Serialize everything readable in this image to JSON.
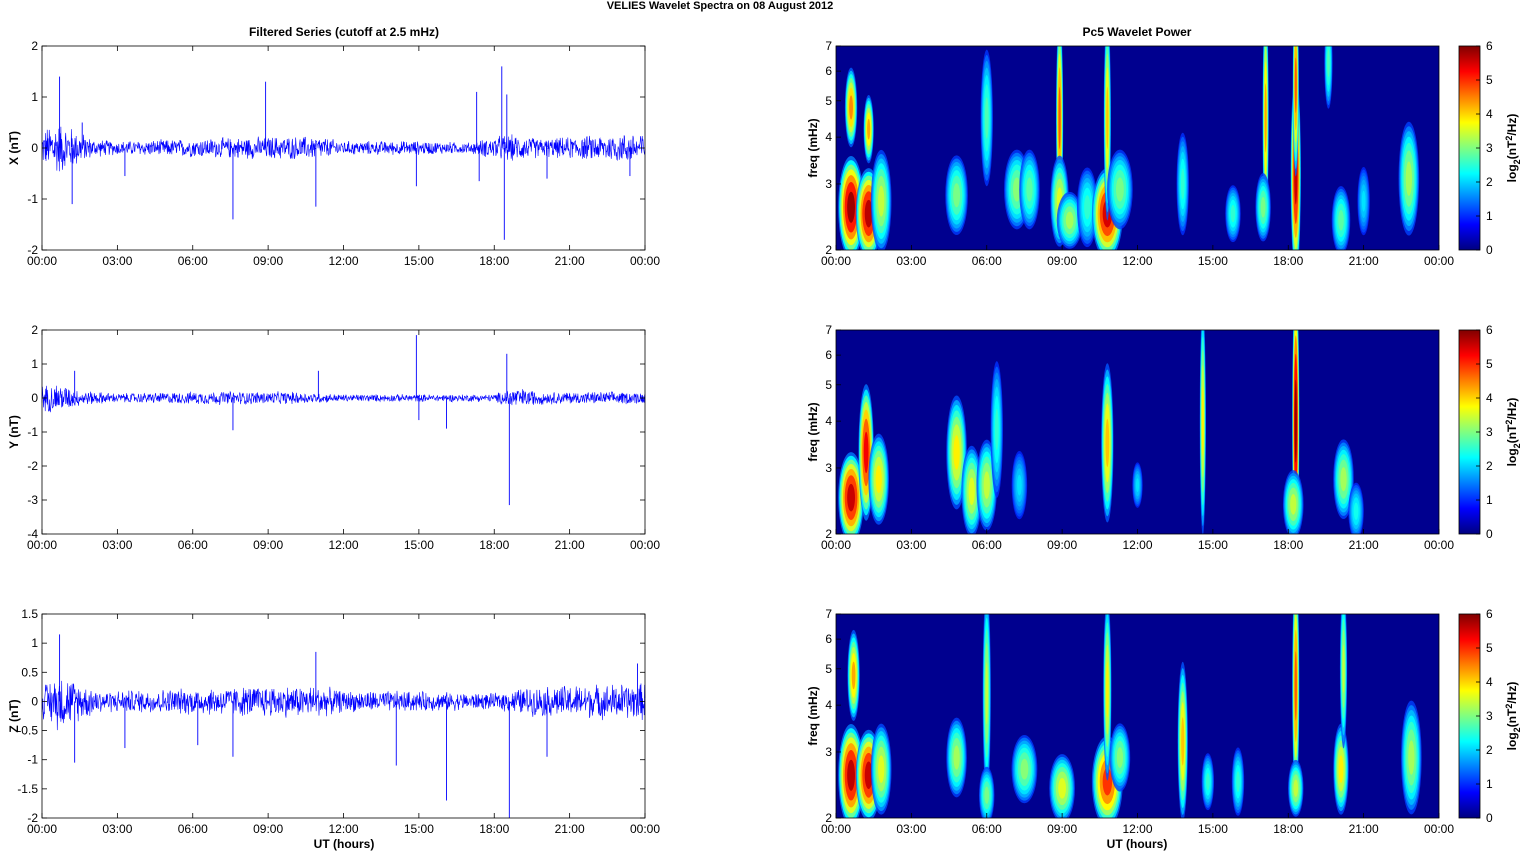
{
  "figure": {
    "title": "VELIES Wavelet Spectra on 08 August    2012",
    "left_title": "Filtered Series (cutoff at 2.5 mHz)",
    "right_title": "Pc5 Wavelet Power",
    "xlabel": "UT (hours)"
  },
  "colors": {
    "trace": "#0000ff",
    "spectrum_background": "#00008f"
  },
  "chart_data": [
    {
      "type": "line",
      "title": "Filtered Series (cutoff at 2.5 mHz)",
      "ylabel": "X (nT)",
      "xlim": [
        0,
        24
      ],
      "ylim": [
        -2,
        2
      ],
      "xticks": [
        "00:00",
        "03:00",
        "06:00",
        "09:00",
        "12:00",
        "15:00",
        "18:00",
        "21:00",
        "00:00"
      ],
      "yticks": [
        2,
        1,
        0,
        -1,
        -2
      ],
      "ytick_labels": [
        "2",
        "1",
        "0",
        "-1",
        "-2"
      ],
      "envelope": [
        [
          0,
          0.35
        ],
        [
          0.5,
          0.6
        ],
        [
          1.2,
          0.45
        ],
        [
          2,
          0.2
        ],
        [
          3,
          0.15
        ],
        [
          6,
          0.2
        ],
        [
          9,
          0.25
        ],
        [
          11,
          0.25
        ],
        [
          12,
          0.15
        ],
        [
          15,
          0.15
        ],
        [
          17,
          0.12
        ],
        [
          18.5,
          0.3
        ],
        [
          20,
          0.2
        ],
        [
          24,
          0.35
        ]
      ],
      "spikes": [
        [
          0.7,
          1.4
        ],
        [
          1.2,
          -1.1
        ],
        [
          1.6,
          0.5
        ],
        [
          3.3,
          -0.55
        ],
        [
          7.6,
          -1.4
        ],
        [
          8.9,
          1.3
        ],
        [
          10.9,
          -1.15
        ],
        [
          14.9,
          -0.75
        ],
        [
          17.3,
          1.1
        ],
        [
          17.4,
          -0.65
        ],
        [
          18.3,
          1.6
        ],
        [
          18.4,
          -1.8
        ],
        [
          18.5,
          1.05
        ],
        [
          20.1,
          -0.6
        ],
        [
          23.4,
          -0.55
        ]
      ],
      "series": [
        {
          "name": "X",
          "values": []
        }
      ]
    },
    {
      "type": "line",
      "ylabel": "Y (nT)",
      "xlim": [
        0,
        24
      ],
      "ylim": [
        -4,
        2
      ],
      "xticks": [
        "00:00",
        "03:00",
        "06:00",
        "09:00",
        "12:00",
        "15:00",
        "18:00",
        "21:00",
        "00:00"
      ],
      "yticks": [
        2,
        1,
        0,
        -1,
        -2,
        -3,
        -4
      ],
      "ytick_labels": [
        "2",
        "1",
        "0",
        "-1",
        "-2",
        "-3",
        "-4"
      ],
      "envelope": [
        [
          0,
          0.4
        ],
        [
          0.6,
          0.5
        ],
        [
          1.5,
          0.25
        ],
        [
          3,
          0.15
        ],
        [
          7,
          0.22
        ],
        [
          10,
          0.2
        ],
        [
          12,
          0.12
        ],
        [
          18,
          0.12
        ],
        [
          18.7,
          0.35
        ],
        [
          20,
          0.2
        ],
        [
          24,
          0.2
        ]
      ],
      "spikes": [
        [
          1.3,
          0.8
        ],
        [
          7.6,
          -0.95
        ],
        [
          11,
          0.8
        ],
        [
          14.9,
          1.85
        ],
        [
          15,
          -0.65
        ],
        [
          16.1,
          -0.9
        ],
        [
          18.5,
          1.3
        ],
        [
          18.6,
          -3.15
        ]
      ],
      "series": [
        {
          "name": "Y",
          "values": []
        }
      ]
    },
    {
      "type": "line",
      "ylabel": "Z (nT)",
      "xlabel": "UT (hours)",
      "xlim": [
        0,
        24
      ],
      "ylim": [
        -2,
        1.5
      ],
      "xticks": [
        "00:00",
        "03:00",
        "06:00",
        "09:00",
        "12:00",
        "15:00",
        "18:00",
        "21:00",
        "00:00"
      ],
      "yticks": [
        1.5,
        1,
        0.5,
        0,
        -0.5,
        -1,
        -1.5,
        -2
      ],
      "ytick_labels": [
        "1.5",
        "1",
        "0.5",
        "0",
        "-0.5",
        "-1",
        "-1.5",
        "-2"
      ],
      "envelope": [
        [
          0,
          0.3
        ],
        [
          0.7,
          0.55
        ],
        [
          1.5,
          0.35
        ],
        [
          2.5,
          0.2
        ],
        [
          6,
          0.25
        ],
        [
          9,
          0.3
        ],
        [
          11,
          0.3
        ],
        [
          12,
          0.2
        ],
        [
          14,
          0.2
        ],
        [
          18,
          0.15
        ],
        [
          19,
          0.25
        ],
        [
          20.5,
          0.3
        ],
        [
          24,
          0.35
        ]
      ],
      "spikes": [
        [
          0.7,
          1.15
        ],
        [
          1.3,
          -1.05
        ],
        [
          3.3,
          -0.8
        ],
        [
          6.2,
          -0.75
        ],
        [
          7.6,
          -0.95
        ],
        [
          10.9,
          0.85
        ],
        [
          14.1,
          -1.1
        ],
        [
          16.1,
          -1.7
        ],
        [
          18.6,
          -2.0
        ],
        [
          20.1,
          -0.95
        ],
        [
          23.7,
          0.65
        ]
      ],
      "series": [
        {
          "name": "Z",
          "values": []
        }
      ]
    },
    {
      "type": "heatmap",
      "title": "Pc5 Wavelet Power",
      "ylabel": "freq (mHz)",
      "colorbar_label": "log2(nT2/Hz)",
      "xlim": [
        0,
        24
      ],
      "ylim": [
        2,
        7
      ],
      "yscale": "log",
      "clim": [
        0,
        6
      ],
      "xticks": [
        "00:00",
        "03:00",
        "06:00",
        "09:00",
        "12:00",
        "15:00",
        "18:00",
        "21:00",
        "00:00"
      ],
      "yticks": [
        2,
        3,
        4,
        5,
        6,
        7
      ],
      "ytick_labels": [
        "2",
        "3",
        "4",
        "5",
        "6",
        "7"
      ],
      "cticks": [
        "0",
        "1",
        "2",
        "3",
        "4",
        "5",
        "6"
      ],
      "blobs": [
        [
          0.6,
          2.6,
          0.25,
          0.45,
          5.8
        ],
        [
          0.6,
          4.8,
          0.12,
          0.35,
          4.2
        ],
        [
          1.3,
          2.5,
          0.25,
          0.4,
          5.6
        ],
        [
          1.3,
          4.2,
          0.1,
          0.3,
          4.0
        ],
        [
          1.8,
          2.7,
          0.2,
          0.45,
          3.0
        ],
        [
          4.8,
          2.8,
          0.22,
          0.35,
          2.5
        ],
        [
          6.0,
          4.5,
          0.12,
          0.6,
          2.2
        ],
        [
          7.2,
          2.9,
          0.25,
          0.35,
          2.6
        ],
        [
          7.7,
          2.9,
          0.2,
          0.35,
          2.3
        ],
        [
          8.9,
          4.5,
          0.07,
          0.9,
          4.5
        ],
        [
          8.9,
          2.7,
          0.18,
          0.4,
          3.2
        ],
        [
          9.3,
          2.4,
          0.25,
          0.25,
          2.8
        ],
        [
          10.0,
          2.6,
          0.2,
          0.35,
          2.0
        ],
        [
          10.8,
          2.5,
          0.3,
          0.4,
          5.4
        ],
        [
          10.8,
          4.5,
          0.07,
          0.9,
          3.8
        ],
        [
          11.3,
          2.9,
          0.25,
          0.35,
          2.5
        ],
        [
          13.8,
          3.0,
          0.12,
          0.45,
          2.0
        ],
        [
          15.8,
          2.5,
          0.15,
          0.25,
          2.0
        ],
        [
          17.1,
          4.5,
          0.06,
          1.0,
          4.0
        ],
        [
          17.0,
          2.6,
          0.15,
          0.3,
          2.5
        ],
        [
          18.3,
          3.2,
          0.1,
          0.9,
          5.5
        ],
        [
          18.3,
          5.5,
          0.06,
          0.8,
          4.5
        ],
        [
          19.6,
          6.3,
          0.08,
          0.4,
          2.2
        ],
        [
          20.1,
          2.4,
          0.18,
          0.3,
          2.3
        ],
        [
          21.0,
          2.7,
          0.12,
          0.3,
          1.5
        ],
        [
          22.8,
          3.1,
          0.2,
          0.5,
          2.8
        ]
      ]
    },
    {
      "type": "heatmap",
      "ylabel": "freq (mHz)",
      "colorbar_label": "log2(nT2/Hz)",
      "xlim": [
        0,
        24
      ],
      "ylim": [
        2,
        7
      ],
      "yscale": "log",
      "clim": [
        0,
        6
      ],
      "xticks": [
        "00:00",
        "03:00",
        "06:00",
        "09:00",
        "12:00",
        "15:00",
        "18:00",
        "21:00",
        "00:00"
      ],
      "yticks": [
        2,
        3,
        4,
        5,
        6,
        7
      ],
      "ytick_labels": [
        "2",
        "3",
        "4",
        "5",
        "6",
        "7"
      ],
      "cticks": [
        "0",
        "1",
        "2",
        "3",
        "4",
        "5",
        "6"
      ],
      "blobs": [
        [
          0.6,
          2.5,
          0.25,
          0.4,
          5.5
        ],
        [
          1.2,
          3.3,
          0.15,
          0.6,
          5.2
        ],
        [
          1.7,
          2.8,
          0.2,
          0.4,
          3.5
        ],
        [
          4.8,
          3.3,
          0.2,
          0.5,
          3.5
        ],
        [
          5.4,
          2.6,
          0.2,
          0.4,
          3.2
        ],
        [
          6.0,
          2.7,
          0.2,
          0.4,
          3.0
        ],
        [
          6.4,
          3.8,
          0.12,
          0.6,
          2.0
        ],
        [
          7.3,
          2.7,
          0.15,
          0.3,
          1.5
        ],
        [
          10.8,
          3.5,
          0.12,
          0.7,
          3.8
        ],
        [
          12.0,
          2.7,
          0.1,
          0.2,
          1.5
        ],
        [
          14.6,
          4.0,
          0.06,
          1.0,
          3.5
        ],
        [
          18.3,
          4.0,
          0.07,
          1.2,
          5.9
        ],
        [
          18.2,
          2.4,
          0.2,
          0.3,
          3.0
        ],
        [
          20.2,
          2.8,
          0.2,
          0.35,
          2.8
        ],
        [
          20.7,
          2.3,
          0.15,
          0.25,
          1.8
        ]
      ]
    },
    {
      "type": "heatmap",
      "ylabel": "freq (mHz)",
      "xlabel": "UT (hours)",
      "colorbar_label": "log2(nT2/Hz)",
      "xlim": [
        0,
        24
      ],
      "ylim": [
        2,
        7
      ],
      "yscale": "log",
      "clim": [
        0,
        6
      ],
      "xticks": [
        "00:00",
        "03:00",
        "06:00",
        "09:00",
        "12:00",
        "15:00",
        "18:00",
        "21:00",
        "00:00"
      ],
      "yticks": [
        2,
        3,
        4,
        5,
        6,
        7
      ],
      "ytick_labels": [
        "2",
        "3",
        "4",
        "5",
        "6",
        "7"
      ],
      "cticks": [
        "0",
        "1",
        "2",
        "3",
        "4",
        "5",
        "6"
      ],
      "blobs": [
        [
          0.6,
          2.6,
          0.25,
          0.45,
          5.6
        ],
        [
          0.7,
          4.8,
          0.12,
          0.4,
          4.0
        ],
        [
          1.3,
          2.6,
          0.25,
          0.4,
          5.5
        ],
        [
          1.8,
          2.7,
          0.2,
          0.4,
          3.2
        ],
        [
          4.8,
          2.9,
          0.2,
          0.35,
          2.8
        ],
        [
          6.0,
          4.3,
          0.08,
          0.9,
          3.0
        ],
        [
          6.0,
          2.3,
          0.15,
          0.25,
          2.5
        ],
        [
          7.5,
          2.7,
          0.25,
          0.3,
          2.6
        ],
        [
          9.0,
          2.4,
          0.25,
          0.3,
          3.2
        ],
        [
          10.8,
          2.5,
          0.3,
          0.4,
          4.8
        ],
        [
          10.8,
          4.4,
          0.08,
          0.8,
          3.5
        ],
        [
          11.3,
          2.9,
          0.2,
          0.3,
          2.6
        ],
        [
          13.8,
          3.2,
          0.1,
          0.7,
          3.8
        ],
        [
          14.8,
          2.5,
          0.12,
          0.25,
          2.0
        ],
        [
          16.0,
          2.5,
          0.12,
          0.3,
          2.0
        ],
        [
          18.3,
          4.5,
          0.07,
          1.0,
          4.5
        ],
        [
          18.3,
          2.4,
          0.15,
          0.25,
          3.0
        ],
        [
          20.1,
          2.7,
          0.15,
          0.4,
          3.5
        ],
        [
          20.2,
          5.0,
          0.07,
          0.7,
          3.0
        ],
        [
          22.9,
          2.9,
          0.2,
          0.5,
          2.8
        ]
      ]
    }
  ]
}
